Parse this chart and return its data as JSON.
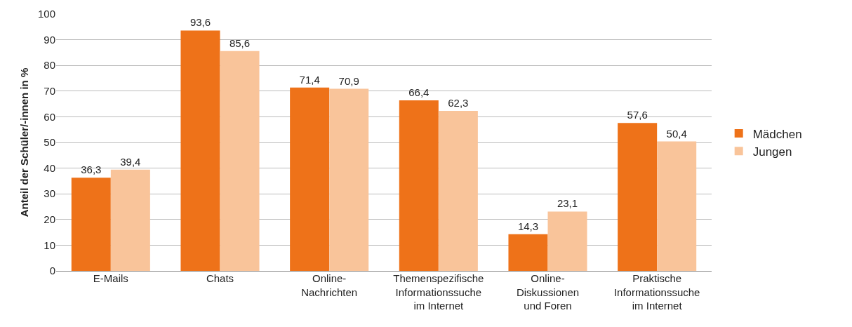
{
  "chart_data": {
    "type": "bar",
    "ylabel": "Anteil der Schüler/-innen in %",
    "categories": [
      "E-Mails",
      "Chats",
      "Online-\nNachrichten",
      "Themenspezifische\nInformationssuche\nim Internet",
      "Online-\nDiskussionen\nund Foren",
      "Praktische\nInformationssuche\nim Internet"
    ],
    "series": [
      {
        "name": "Mädchen",
        "color": "#ee7219",
        "values": [
          36.3,
          93.6,
          71.4,
          66.4,
          14.3,
          57.6
        ]
      },
      {
        "name": "Jungen",
        "color": "#f9c49a",
        "values": [
          39.4,
          85.6,
          70.9,
          62.3,
          23.1,
          50.4
        ]
      }
    ],
    "value_labels": [
      [
        "36,3",
        "93,6",
        "71,4",
        "66,4",
        "14,3",
        "57,6"
      ],
      [
        "39,4",
        "85,6",
        "70,9",
        "62,3",
        "23,1",
        "50,4"
      ]
    ],
    "ylim": [
      0,
      100
    ],
    "yticks": [
      0,
      10,
      20,
      30,
      40,
      50,
      60,
      70,
      80,
      90,
      100
    ],
    "grid": "y",
    "legend": "right"
  }
}
